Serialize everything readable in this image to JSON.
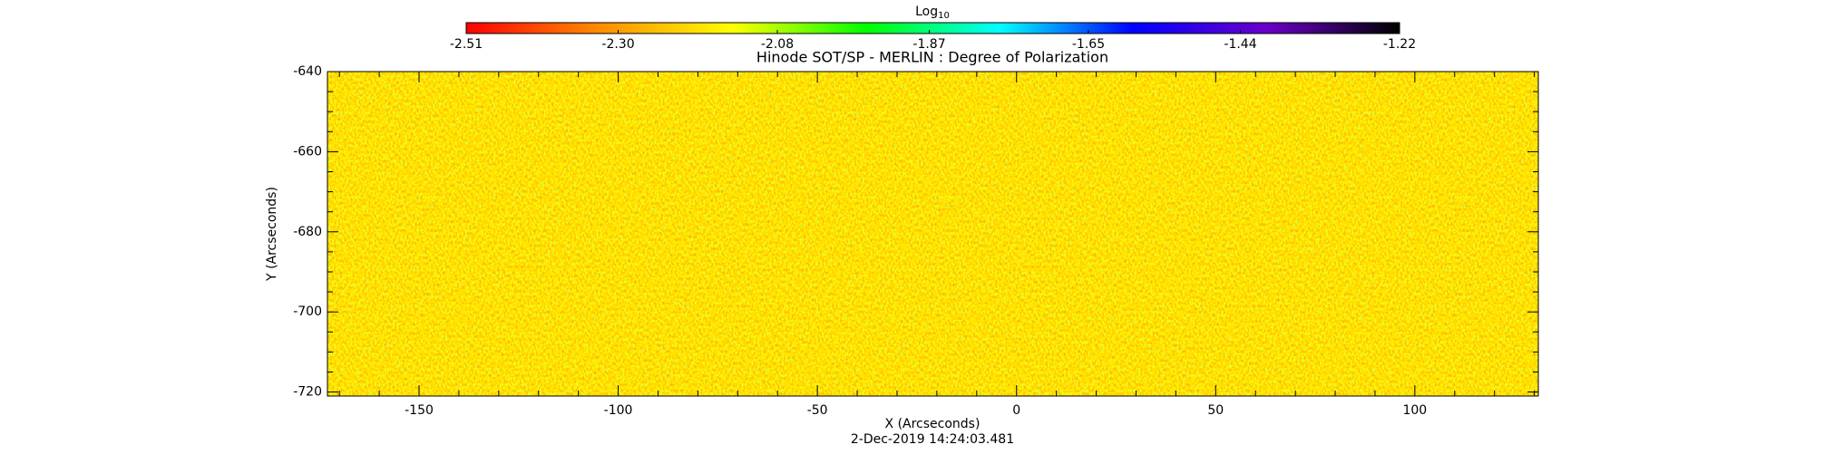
{
  "chart_data": {
    "type": "heatmap",
    "title": "Hinode SOT/SP - MERLIN : Degree of Polarization",
    "xlabel": "X (Arcseconds)",
    "ylabel": "Y (Arcseconds)",
    "date": "2-Dec-2019 14:24:03.481",
    "xlim": [
      -173,
      131
    ],
    "ylim": [
      -721,
      -640
    ],
    "xticks": [
      -150,
      -100,
      -50,
      0,
      50,
      100
    ],
    "yticks": [
      -720,
      -700,
      -680,
      -660,
      -640
    ],
    "xminorticks": [
      -170,
      -160,
      -140,
      -130,
      -120,
      -110,
      -90,
      -80,
      -70,
      -60,
      -40,
      -30,
      -20,
      -10,
      10,
      20,
      30,
      40,
      60,
      70,
      80,
      90,
      110,
      120,
      130
    ],
    "yminorticks": [
      -715,
      -710,
      -705,
      -695,
      -690,
      -685,
      -675,
      -670,
      -665,
      -655,
      -650,
      -645
    ],
    "colorbar": {
      "label": "Log",
      "label_subscript": "10",
      "lim": [
        -2.51,
        -1.22
      ],
      "ticks": [
        -2.51,
        {
          "value": -2.3,
          "label": "-2.30"
        },
        -2.08,
        -1.87,
        -1.65,
        -1.44,
        -1.22
      ],
      "colormap": [
        "#ff0000",
        "#ff8c00",
        "#ffff00",
        "#00ff00",
        "#00ffff",
        "#0000ff",
        "#6a00c8",
        "#000000"
      ]
    }
  }
}
